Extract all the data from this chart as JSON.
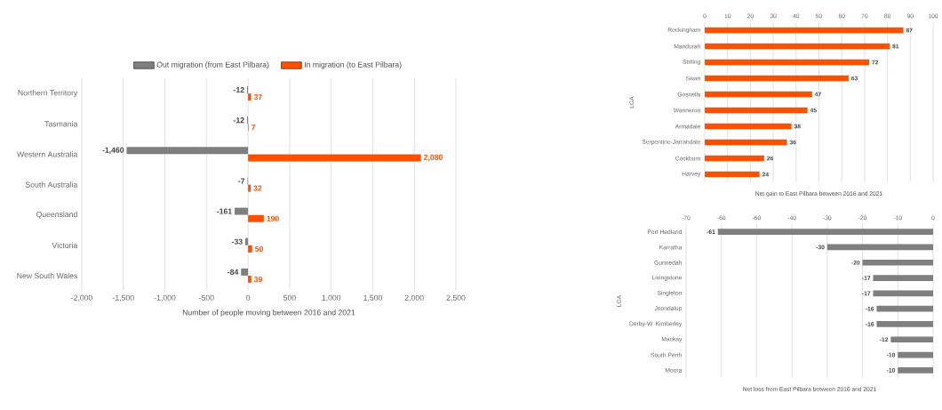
{
  "chart_data": [
    {
      "type": "bar",
      "orientation": "horizontal",
      "categories": [
        "Northern Territory",
        "Tasmania",
        "Western Australia",
        "South Australia",
        "Queensland",
        "Victoria",
        "New South Wales"
      ],
      "series": [
        {
          "name": "Out migration (from East Pilbara)",
          "color": "#7f7f7f",
          "values": [
            -12,
            -12,
            -1460,
            -7,
            -161,
            -33,
            -84
          ],
          "value_labels": [
            "-12",
            "-12",
            "-1,460",
            "-7",
            "-161",
            "-33",
            "-84"
          ]
        },
        {
          "name": "In migration (to East Pilbara)",
          "color": "#ff5000",
          "values": [
            37,
            7,
            2080,
            32,
            190,
            50,
            39
          ],
          "value_labels": [
            "37",
            "7",
            "2,080",
            "32",
            "190",
            "50",
            "39"
          ]
        }
      ],
      "xlim": [
        -2000,
        2500
      ],
      "xticks": [
        {
          "value": -2000,
          "label": "-2,000"
        },
        {
          "value": -1500,
          "label": "-1,500"
        },
        {
          "value": -1000,
          "label": "-1,000"
        },
        -500,
        0,
        500,
        {
          "value": 1000,
          "label": "1,000"
        },
        {
          "value": 1500,
          "label": "1,500"
        },
        {
          "value": 2000,
          "label": "2,000"
        },
        {
          "value": 2500,
          "label": "2,500"
        }
      ],
      "xlabel": "Number of people moving between 2016 and 2021",
      "grid": "x",
      "legend": "top"
    },
    {
      "type": "bar",
      "orientation": "horizontal",
      "categories": [
        "Rockingham",
        "Mandurah",
        "Stirling",
        "Swan",
        "Gosnells",
        "Wanneroo",
        "Armadale",
        "Serpentine-Jarrahdale",
        "Cockburn",
        "Harvey"
      ],
      "values": [
        87,
        81,
        72,
        63,
        47,
        45,
        38,
        36,
        26,
        24
      ],
      "color": "#ff5000",
      "xlim": [
        0,
        100
      ],
      "xticks": [
        0,
        10,
        20,
        30,
        40,
        50,
        60,
        70,
        80,
        90,
        100
      ],
      "xlabel": "Net gain to East Pilbara between 2016 and 2021",
      "ylabel": "LGA",
      "grid": "x",
      "data_labels": true
    },
    {
      "type": "bar",
      "orientation": "horizontal",
      "categories": [
        "Port Hedland",
        "Karratha",
        "Gunnedah",
        "Livingstone",
        "Singleton",
        "Joondalup",
        "Derby-W. Kimberley",
        "Mackay",
        "South Perth",
        "Moora"
      ],
      "values": [
        -61,
        -30,
        -20,
        -17,
        -17,
        -16,
        -16,
        -12,
        -10,
        -10
      ],
      "color": "#7f7f7f",
      "xlim": [
        -70,
        0
      ],
      "xticks": [
        -70,
        -60,
        -50,
        -40,
        -30,
        -20,
        -10,
        0
      ],
      "xlabel": "Net loss from East Pilbara between 2016 and 2021",
      "ylabel": "LGA",
      "grid": "x",
      "data_labels": true
    }
  ]
}
